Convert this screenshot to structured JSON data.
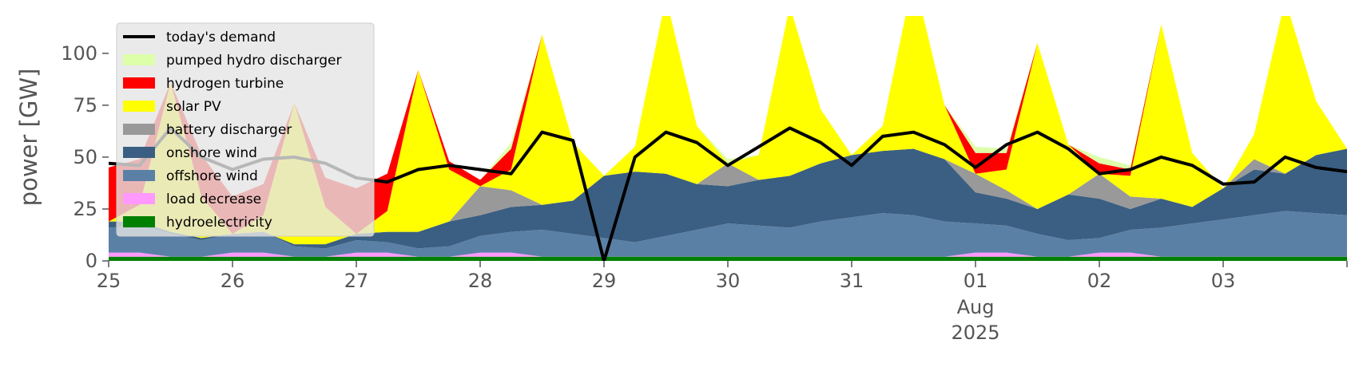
{
  "chart_data": {
    "type": "area",
    "title": "",
    "xlabel": "",
    "ylabel": "power [GW]",
    "ylim": [
      0,
      118
    ],
    "yticks": [
      0,
      25,
      50,
      75,
      100
    ],
    "xlim": [
      "2025-07-25T00:00",
      "2025-08-04T00:00"
    ],
    "grid": false,
    "legend_position": "top-left",
    "x_ticks": [
      {
        "date": "2025-07-25",
        "label": "25"
      },
      {
        "date": "2025-07-26",
        "label": "26"
      },
      {
        "date": "2025-07-27",
        "label": "27"
      },
      {
        "date": "2025-07-28",
        "label": "28"
      },
      {
        "date": "2025-07-29",
        "label": "29"
      },
      {
        "date": "2025-07-30",
        "label": "30"
      },
      {
        "date": "2025-07-31",
        "label": "31"
      },
      {
        "date": "2025-08-01",
        "label": "01",
        "sublabel": [
          "Aug",
          "2025"
        ]
      },
      {
        "date": "2025-08-02",
        "label": "02"
      },
      {
        "date": "2025-08-03",
        "label": "03"
      }
    ],
    "x": [
      "2025-07-25T00:00",
      "2025-07-25T06:00",
      "2025-07-25T12:00",
      "2025-07-25T18:00",
      "2025-07-26T00:00",
      "2025-07-26T06:00",
      "2025-07-26T12:00",
      "2025-07-26T18:00",
      "2025-07-27T00:00",
      "2025-07-27T06:00",
      "2025-07-27T12:00",
      "2025-07-27T18:00",
      "2025-07-28T00:00",
      "2025-07-28T06:00",
      "2025-07-28T12:00",
      "2025-07-28T18:00",
      "2025-07-29T00:00",
      "2025-07-29T06:00",
      "2025-07-29T12:00",
      "2025-07-29T18:00",
      "2025-07-30T00:00",
      "2025-07-30T06:00",
      "2025-07-30T12:00",
      "2025-07-30T18:00",
      "2025-07-31T00:00",
      "2025-07-31T06:00",
      "2025-07-31T12:00",
      "2025-07-31T18:00",
      "2025-08-01T00:00",
      "2025-08-01T06:00",
      "2025-08-01T12:00",
      "2025-08-01T18:00",
      "2025-08-02T00:00",
      "2025-08-02T06:00",
      "2025-08-02T12:00",
      "2025-08-02T18:00",
      "2025-08-03T00:00",
      "2025-08-03T06:00",
      "2025-08-03T12:00",
      "2025-08-03T18:00",
      "2025-08-04T00:00"
    ],
    "series": [
      {
        "name": "hydroelectricity",
        "color": "#008000",
        "values": [
          2,
          2,
          2,
          2,
          2,
          2,
          2,
          2,
          2,
          2,
          2,
          2,
          2,
          2,
          2,
          2,
          2,
          2,
          2,
          2,
          2,
          2,
          2,
          2,
          2,
          2,
          2,
          2,
          2,
          2,
          2,
          2,
          2,
          2,
          2,
          2,
          2,
          2,
          2,
          2,
          2
        ]
      },
      {
        "name": "load decrease",
        "color": "#ff99ff",
        "values": [
          2,
          2,
          0,
          0,
          2,
          2,
          0,
          0,
          2,
          2,
          0,
          0,
          2,
          2,
          0,
          0,
          0,
          0,
          0,
          0,
          0,
          0,
          0,
          0,
          0,
          0,
          0,
          0,
          2,
          2,
          0,
          0,
          2,
          2,
          0,
          0,
          0,
          0,
          0,
          0,
          0
        ]
      },
      {
        "name": "offshore wind",
        "color": "#5b80a6",
        "values": [
          12,
          13,
          11,
          8,
          9,
          10,
          5,
          4,
          6,
          5,
          4,
          5,
          8,
          10,
          13,
          11,
          9,
          7,
          10,
          13,
          16,
          15,
          14,
          17,
          19,
          21,
          20,
          17,
          14,
          13,
          11,
          8,
          7,
          11,
          14,
          16,
          18,
          20,
          22,
          21,
          20
        ]
      },
      {
        "name": "onshore wind",
        "color": "#3b5f82",
        "values": [
          3,
          2,
          1,
          1,
          0,
          0,
          1,
          2,
          3,
          5,
          8,
          12,
          10,
          12,
          12,
          16,
          30,
          34,
          30,
          22,
          18,
          22,
          25,
          28,
          30,
          30,
          32,
          30,
          15,
          13,
          12,
          22,
          19,
          10,
          14,
          8,
          15,
          22,
          18,
          28,
          32
        ]
      },
      {
        "name": "battery discharger",
        "color": "#999999",
        "values": [
          0,
          0,
          0,
          0,
          0,
          0,
          0,
          0,
          0,
          0,
          0,
          0,
          14,
          8,
          0,
          0,
          0,
          0,
          0,
          0,
          11,
          0,
          0,
          0,
          0,
          0,
          0,
          0,
          9,
          4,
          0,
          0,
          12,
          6,
          0,
          0,
          0,
          5,
          0,
          0,
          0
        ]
      },
      {
        "name": "solar PV",
        "color": "#ffff00",
        "values": [
          0,
          8,
          72,
          20,
          0,
          8,
          68,
          18,
          0,
          10,
          78,
          25,
          0,
          10,
          82,
          28,
          0,
          12,
          85,
          28,
          0,
          12,
          82,
          26,
          0,
          12,
          83,
          26,
          0,
          10,
          80,
          24,
          0,
          10,
          84,
          26,
          0,
          12,
          84,
          26,
          0
        ]
      },
      {
        "name": "hydrogen turbine",
        "color": "#ff0000",
        "values": [
          26,
          22,
          0,
          20,
          18,
          15,
          0,
          14,
          22,
          18,
          0,
          4,
          3,
          10,
          0,
          0,
          0,
          0,
          0,
          0,
          0,
          0,
          0,
          0,
          0,
          0,
          0,
          0,
          10,
          8,
          0,
          0,
          5,
          3,
          0,
          0,
          0,
          0,
          0,
          0,
          0
        ]
      },
      {
        "name": "pumped hydro discharger",
        "color": "#ddffaa",
        "values": [
          0,
          0,
          0,
          0,
          0,
          0,
          0,
          0,
          0,
          0,
          0,
          0,
          0,
          3,
          0,
          0,
          0,
          0,
          0,
          0,
          2,
          0,
          0,
          0,
          0,
          0,
          0,
          0,
          3,
          2,
          0,
          0,
          3,
          2,
          0,
          0,
          0,
          0,
          0,
          0,
          0
        ]
      }
    ],
    "demand": {
      "name": "today's demand",
      "color": "#000000",
      "values": [
        47,
        46,
        64,
        50,
        44,
        49,
        50,
        47,
        40,
        38,
        44,
        46,
        44,
        42,
        62,
        58,
        0,
        50,
        62,
        57,
        46,
        55,
        64,
        57,
        46,
        60,
        62,
        56,
        45,
        56,
        62,
        54,
        42,
        44,
        50,
        46,
        37,
        38,
        50,
        45,
        43
      ]
    }
  }
}
